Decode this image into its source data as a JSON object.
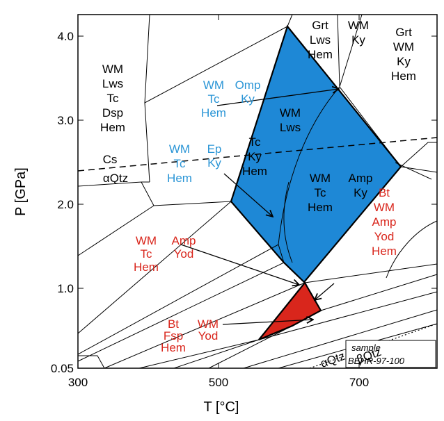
{
  "axes": {
    "x_label": "T [°C]",
    "y_label": "P [GPa]",
    "x_ticks": [
      "300",
      "500",
      "700"
    ],
    "y_ticks": [
      "4.0",
      "3.0",
      "2.0",
      "1.0",
      "0.05"
    ]
  },
  "sample": {
    "line1": "sample",
    "line2": "BEHR-97-100"
  },
  "colors": {
    "field_blue": "#1e88d6",
    "field_red": "#d9261c",
    "label_blue": "#2a95d6",
    "label_red": "#d9261c",
    "label_black": "#000000"
  },
  "fields": [
    {
      "id": "f1",
      "color": "black",
      "lines": [
        "WM",
        "Lws",
        "Tc",
        "Dsp",
        "Hem"
      ]
    },
    {
      "id": "f2",
      "color": "black",
      "lines": [
        "Cs"
      ]
    },
    {
      "id": "f3",
      "color": "black",
      "lines": [
        "αQtz"
      ]
    },
    {
      "id": "f4",
      "color": "black",
      "lines": [
        "Grt",
        "Lws",
        "Hem"
      ]
    },
    {
      "id": "f5",
      "color": "black",
      "lines": [
        "WM",
        "Ky"
      ]
    },
    {
      "id": "f6",
      "color": "black",
      "lines": [
        "Grt",
        "WM",
        "Ky",
        "Hem"
      ]
    },
    {
      "id": "f7",
      "color": "blue",
      "lines": [
        "WM",
        "Tc",
        "Hem"
      ]
    },
    {
      "id": "f8",
      "color": "blue",
      "lines": [
        "Omp",
        "Ky"
      ]
    },
    {
      "id": "f9",
      "color": "blue",
      "lines": [
        "WM",
        "Tc",
        "Hem"
      ]
    },
    {
      "id": "f10",
      "color": "blue",
      "lines": [
        "Ep",
        "Ky"
      ]
    },
    {
      "id": "f11",
      "color": "black",
      "lines": [
        "WM",
        "Lws"
      ]
    },
    {
      "id": "f12",
      "color": "black",
      "lines": [
        "Tc",
        "Ky",
        "Hem"
      ]
    },
    {
      "id": "f13",
      "color": "black",
      "lines": [
        "WM",
        "Tc",
        "Hem"
      ]
    },
    {
      "id": "f14",
      "color": "black",
      "lines": [
        "Amp",
        "Ky"
      ]
    },
    {
      "id": "f15",
      "color": "red",
      "lines": [
        "Bt",
        "WM",
        "Amp",
        "Yod",
        "Hem"
      ]
    },
    {
      "id": "f16",
      "color": "red",
      "lines": [
        "WM",
        "Tc",
        "Hem"
      ]
    },
    {
      "id": "f17",
      "color": "red",
      "lines": [
        "Amp",
        "Yod"
      ]
    },
    {
      "id": "f18",
      "color": "red",
      "lines": [
        "Bt",
        "Fsp",
        "Hem"
      ]
    },
    {
      "id": "f19",
      "color": "red",
      "lines": [
        "WM",
        "Yod"
      ]
    },
    {
      "id": "f20",
      "color": "black",
      "lines": [
        "αQtz"
      ]
    },
    {
      "id": "f21",
      "color": "black",
      "lines": [
        "βQtz"
      ]
    }
  ]
}
